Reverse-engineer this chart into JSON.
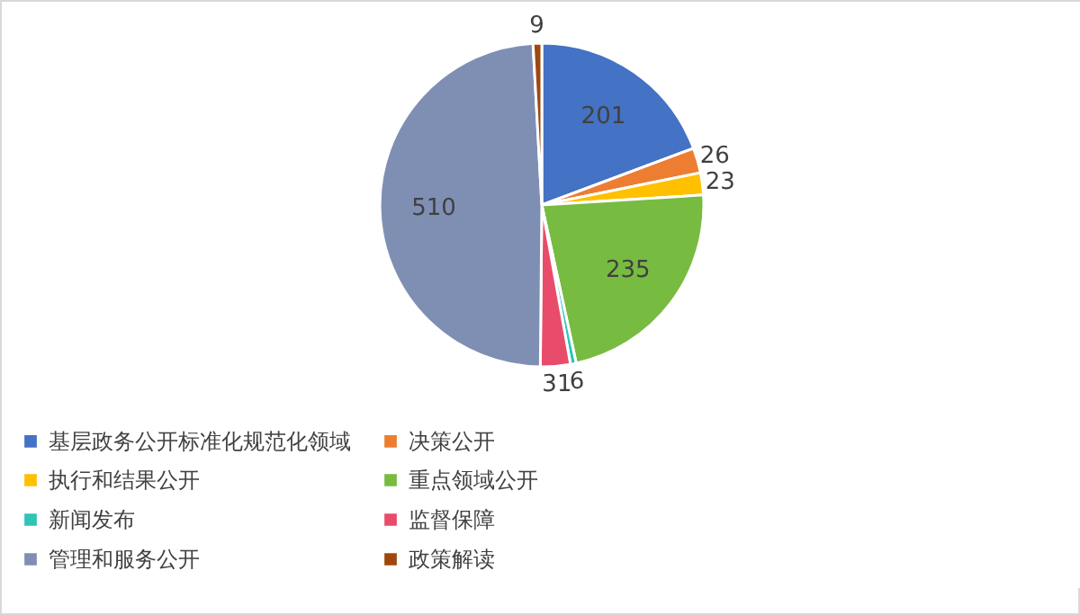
{
  "chart_data": {
    "type": "pie",
    "categories": [
      "基层政务公开标准化规范化领域",
      "决策公开",
      "执行和结果公开",
      "重点领域公开",
      "新闻发布",
      "监督保障",
      "管理和服务公开",
      "政策解读"
    ],
    "values": [
      201,
      26,
      23,
      235,
      6,
      31,
      510,
      9
    ],
    "colors": [
      "#4472c4",
      "#ed7d31",
      "#ffc000",
      "#77bb41",
      "#2ec4b6",
      "#e84c6a",
      "#7f8fb4",
      "#9e480e"
    ],
    "data_labels": true,
    "legend": "bottom"
  }
}
